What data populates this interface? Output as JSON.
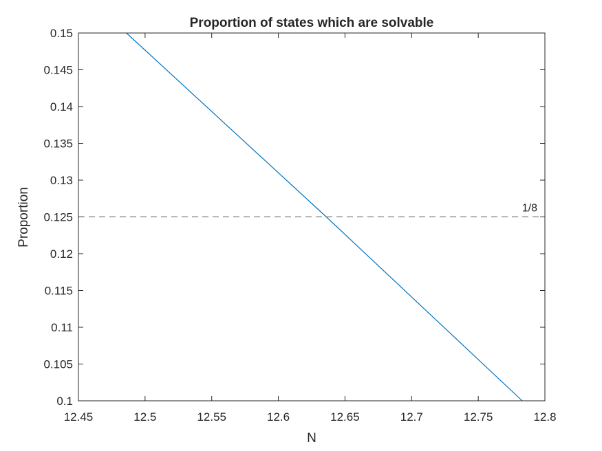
{
  "chart_data": {
    "type": "line",
    "title": "Proportion of states which are solvable",
    "xlabel": "N",
    "ylabel": "Proportion",
    "xlim": [
      12.45,
      12.8
    ],
    "ylim": [
      0.1,
      0.15
    ],
    "xticks": [
      12.45,
      12.5,
      12.55,
      12.6,
      12.65,
      12.7,
      12.75,
      12.8
    ],
    "xtick_labels": [
      "12.45",
      "12.5",
      "12.55",
      "12.6",
      "12.65",
      "12.7",
      "12.75",
      "12.8"
    ],
    "yticks": [
      0.1,
      0.105,
      0.11,
      0.115,
      0.12,
      0.125,
      0.13,
      0.135,
      0.14,
      0.145,
      0.15
    ],
    "ytick_labels": [
      "0.1",
      "0.105",
      "0.11",
      "0.115",
      "0.12",
      "0.125",
      "0.13",
      "0.135",
      "0.14",
      "0.145",
      "0.15"
    ],
    "grid": false,
    "series": [
      {
        "color": "#0072BD",
        "x": [
          12.486,
          12.636,
          12.783
        ],
        "y": [
          0.15,
          0.125,
          0.1
        ]
      }
    ],
    "reference_line": {
      "y": 0.125,
      "label": "1/8",
      "style": "dashed",
      "color": "#555555"
    }
  }
}
